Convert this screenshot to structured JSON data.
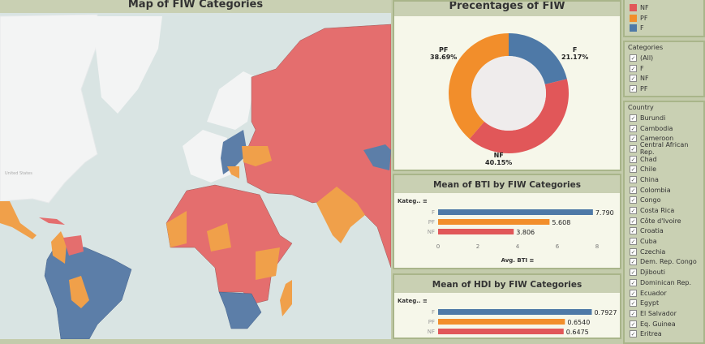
{
  "map": {
    "title": "Map of FIW Categories",
    "label_us": "United States"
  },
  "pie": {
    "title": "Precentages of FIW",
    "slices": [
      {
        "name": "F",
        "pct": "21.17%",
        "value": 21.17,
        "color": "#4e79a7"
      },
      {
        "name": "NF",
        "pct": "40.15%",
        "value": 40.15,
        "color": "#e15759"
      },
      {
        "name": "PF",
        "pct": "38.69%",
        "value": 38.69,
        "color": "#f28e2b"
      }
    ]
  },
  "chart_data": [
    {
      "type": "bar",
      "title": "Mean of BTI by FIW Categories",
      "ylabel": "Kateg..",
      "xlabel": "Avg. BTI",
      "categories": [
        "F",
        "PF",
        "NF"
      ],
      "values": [
        7.79,
        5.608,
        3.806
      ],
      "labels": [
        "7.790",
        "5.608",
        "3.806"
      ],
      "xlim": [
        0,
        8
      ],
      "ticks": [
        "0",
        "2",
        "4",
        "6",
        "8"
      ],
      "colors": [
        "#4e79a7",
        "#f28e2b",
        "#e15759"
      ]
    },
    {
      "type": "bar",
      "title": "Mean of HDI by FIW Categories",
      "ylabel": "Kateg..",
      "categories": [
        "F",
        "PF",
        "NF"
      ],
      "values": [
        0.7927,
        0.654,
        0.6475
      ],
      "labels": [
        "0.7927",
        "0.6540",
        "0.6475"
      ],
      "colors": [
        "#4e79a7",
        "#f28e2b",
        "#e15759"
      ]
    }
  ],
  "legend": {
    "items": [
      {
        "label": "NF",
        "color": "#e15759"
      },
      {
        "label": "PF",
        "color": "#f28e2b"
      },
      {
        "label": "F",
        "color": "#4e79a7"
      }
    ]
  },
  "categories_filter": {
    "title": "Categories",
    "items": [
      "(All)",
      "F",
      "NF",
      "PF"
    ]
  },
  "country_filter": {
    "title": "Country",
    "items": [
      "Burundi",
      "Cambodia",
      "Cameroon",
      "Central African Rep.",
      "Chad",
      "Chile",
      "China",
      "Colombia",
      "Congo",
      "Costa Rica",
      "Côte d'Ivoire",
      "Croatia",
      "Cuba",
      "Czechia",
      "Dem. Rep. Congo",
      "Djibouti",
      "Dominican Rep.",
      "Ecuador",
      "Egypt",
      "El Salvador",
      "Eq. Guinea",
      "Eritrea"
    ]
  },
  "check": "✓"
}
